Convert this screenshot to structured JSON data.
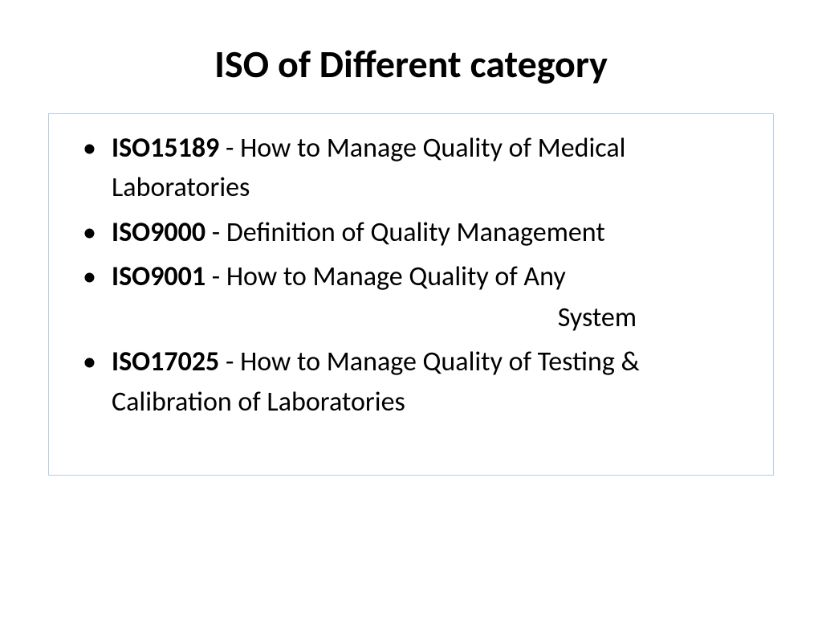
{
  "slide": {
    "title": "ISO of Different category",
    "background_color": "#ffffff",
    "title_fontsize": 48,
    "body_fontsize": 34,
    "text_color": "#000000",
    "box_border_color": "#b8cce4",
    "items": [
      {
        "label": "ISO15189",
        "description": " - How  to Manage  Quality  of Medical  Laboratories"
      },
      {
        "label": "ISO9000",
        "description": " - Definition  of  Quality Management"
      },
      {
        "label": "ISO9001",
        "description": " - How  to  Manage Quality  of Any",
        "continuation": "System"
      },
      {
        "label": "ISO17025",
        "description": " - How to  Manage Quality  of Testing & Calibration of  Laboratories"
      }
    ]
  }
}
